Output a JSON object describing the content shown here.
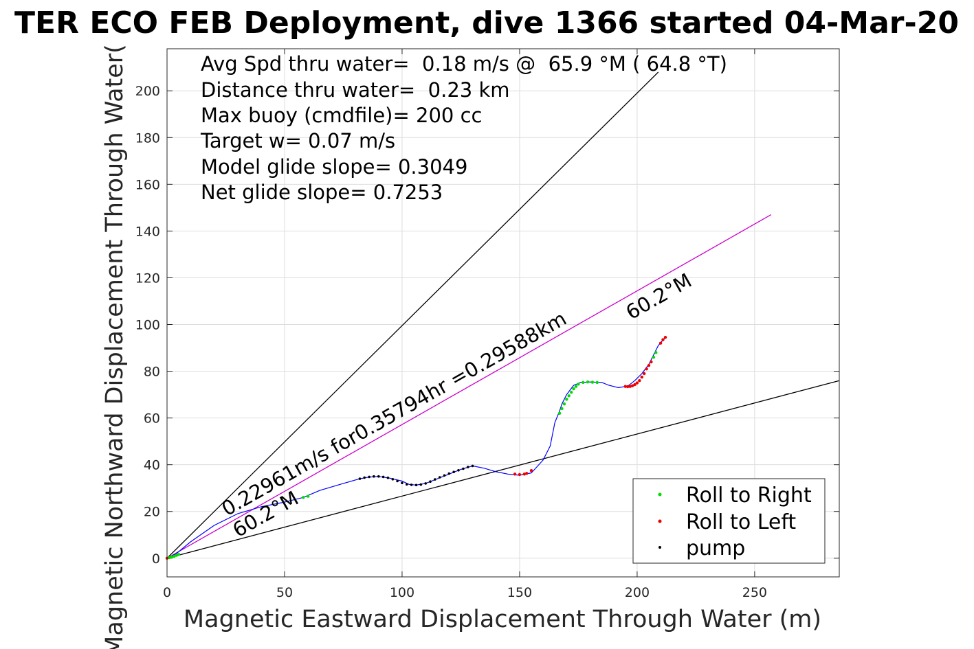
{
  "chart_data": {
    "type": "scatter",
    "title": "TER ECO FEB Deployment, dive 1366 started 04-Mar-20",
    "xlabel": "Magnetic Eastward Displacement Through Water (m)",
    "ylabel": "Magnetic Northward Displacement Through Water(",
    "xlim": [
      0,
      286
    ],
    "ylim": [
      -8,
      218
    ],
    "x_ticks": [
      0,
      50,
      100,
      150,
      200,
      250
    ],
    "y_ticks": [
      0,
      20,
      40,
      60,
      80,
      100,
      120,
      140,
      160,
      180,
      200
    ],
    "grid": true,
    "legend_position": "bottom-right",
    "stats_lines": [
      "Avg Spd thru water=  0.18 m/s @  65.9 °M ( 64.8 °T)",
      "Distance thru water=  0.23 km",
      "Max buoy (cmdfile)= 200 cc",
      "Target w= 0.07 m/s",
      "Model glide slope= 0.3049",
      "Net glide slope= 0.7253"
    ],
    "annotations": {
      "speed_label": "0.22961m/s for0.35794hr =0.29588km",
      "heading_label_start": "60.2°M",
      "heading_label_end": "60.2°M"
    },
    "reference_lines": [
      {
        "color": "#000000",
        "points": [
          [
            0,
            0
          ],
          [
            209,
            208
          ]
        ]
      },
      {
        "color": "#000000",
        "points": [
          [
            0,
            0
          ],
          [
            286,
            76
          ]
        ]
      },
      {
        "color": "#cc00cc",
        "points": [
          [
            0,
            0
          ],
          [
            257,
            147
          ]
        ]
      }
    ],
    "track": {
      "color": "#0000ff",
      "x": [
        0,
        4,
        10,
        20,
        30,
        40,
        50,
        58,
        65,
        75,
        82,
        86,
        90,
        95,
        100,
        103,
        106,
        110,
        115,
        120,
        125,
        130,
        135,
        140,
        145,
        150,
        155,
        160,
        163,
        165,
        167,
        168,
        170,
        173,
        176,
        180,
        185,
        188,
        192,
        196,
        199,
        202,
        205,
        207,
        209,
        212
      ],
      "y": [
        0,
        2,
        7,
        14,
        19,
        22,
        24,
        26,
        29,
        32,
        34,
        34.7,
        35,
        34.2,
        33,
        31.6,
        31.3,
        32,
        34,
        36,
        38,
        39.5,
        38.5,
        37,
        36,
        35.5,
        36.5,
        42,
        48,
        58,
        63,
        66,
        70,
        74,
        75.2,
        75.4,
        75.2,
        74,
        73,
        73.6,
        76,
        79,
        83,
        87,
        91,
        94.5
      ]
    },
    "series": [
      {
        "name": "Roll to Right",
        "color": "#00dd00",
        "x": [
          1,
          2,
          3,
          4,
          5,
          58,
          60,
          167,
          168,
          169,
          170,
          171,
          172,
          173,
          174,
          175,
          177,
          179,
          181,
          183,
          207,
          208
        ],
        "y": [
          0.2,
          0.5,
          0.8,
          1.2,
          1.6,
          26,
          26.5,
          62,
          64,
          66,
          68,
          69.5,
          71,
          72.5,
          73.5,
          74.5,
          75.2,
          75.4,
          75.3,
          75.2,
          86,
          88
        ]
      },
      {
        "name": "Roll to Left",
        "color": "#ee0000",
        "x": [
          0,
          148,
          150,
          152,
          153,
          155,
          195,
          196,
          197,
          198,
          199,
          200,
          201,
          202,
          203,
          204,
          205,
          206,
          210,
          211,
          212
        ],
        "y": [
          0,
          36,
          35.8,
          36,
          36.3,
          37.5,
          73.5,
          73.4,
          73.5,
          73.8,
          74.3,
          75,
          76,
          77.5,
          79,
          81,
          82.5,
          84,
          92,
          93.5,
          94.5
        ]
      },
      {
        "name": "pump",
        "color": "#000000",
        "x": [
          82,
          84,
          86,
          88,
          90,
          92,
          94,
          96,
          98,
          100,
          102,
          104,
          106,
          108,
          110,
          112,
          114,
          116,
          118,
          120,
          122,
          124,
          126,
          128,
          130
        ],
        "y": [
          34,
          34.5,
          34.8,
          35,
          35,
          34.8,
          34.4,
          33.8,
          33,
          32.2,
          31.6,
          31.4,
          31.3,
          31.5,
          32,
          32.8,
          33.7,
          34.6,
          35.4,
          36.2,
          36.9,
          37.6,
          38.3,
          39,
          39.5
        ]
      }
    ]
  }
}
